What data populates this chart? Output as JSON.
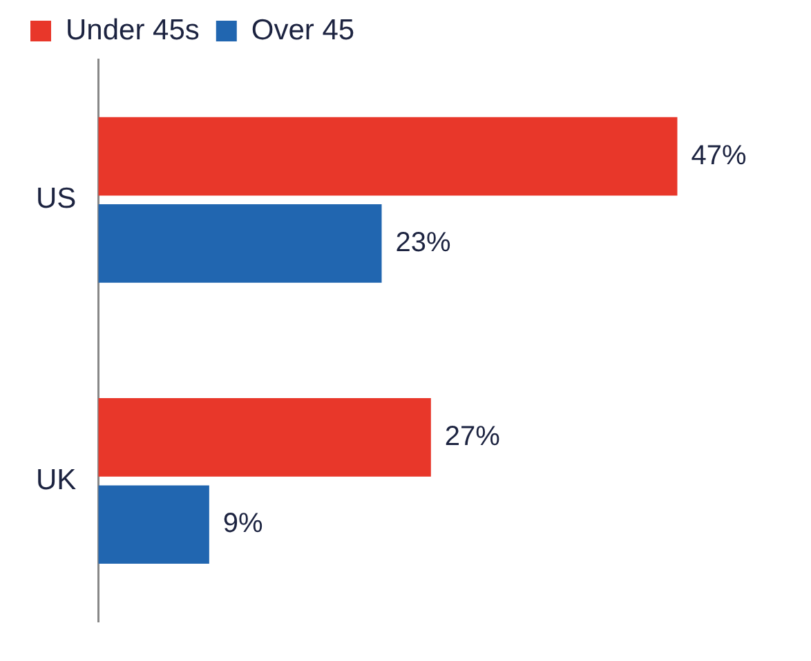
{
  "chart_data": {
    "type": "bar",
    "orientation": "horizontal",
    "categories": [
      "US",
      "UK"
    ],
    "series": [
      {
        "name": "Under 45s",
        "color": "#e8372a",
        "values": [
          47,
          27
        ],
        "value_labels": [
          "47%",
          "27%"
        ]
      },
      {
        "name": "Over 45",
        "color": "#2166b0",
        "values": [
          23,
          9
        ],
        "value_labels": [
          "23%",
          "9%"
        ]
      }
    ],
    "legend": "top",
    "grid": false
  }
}
